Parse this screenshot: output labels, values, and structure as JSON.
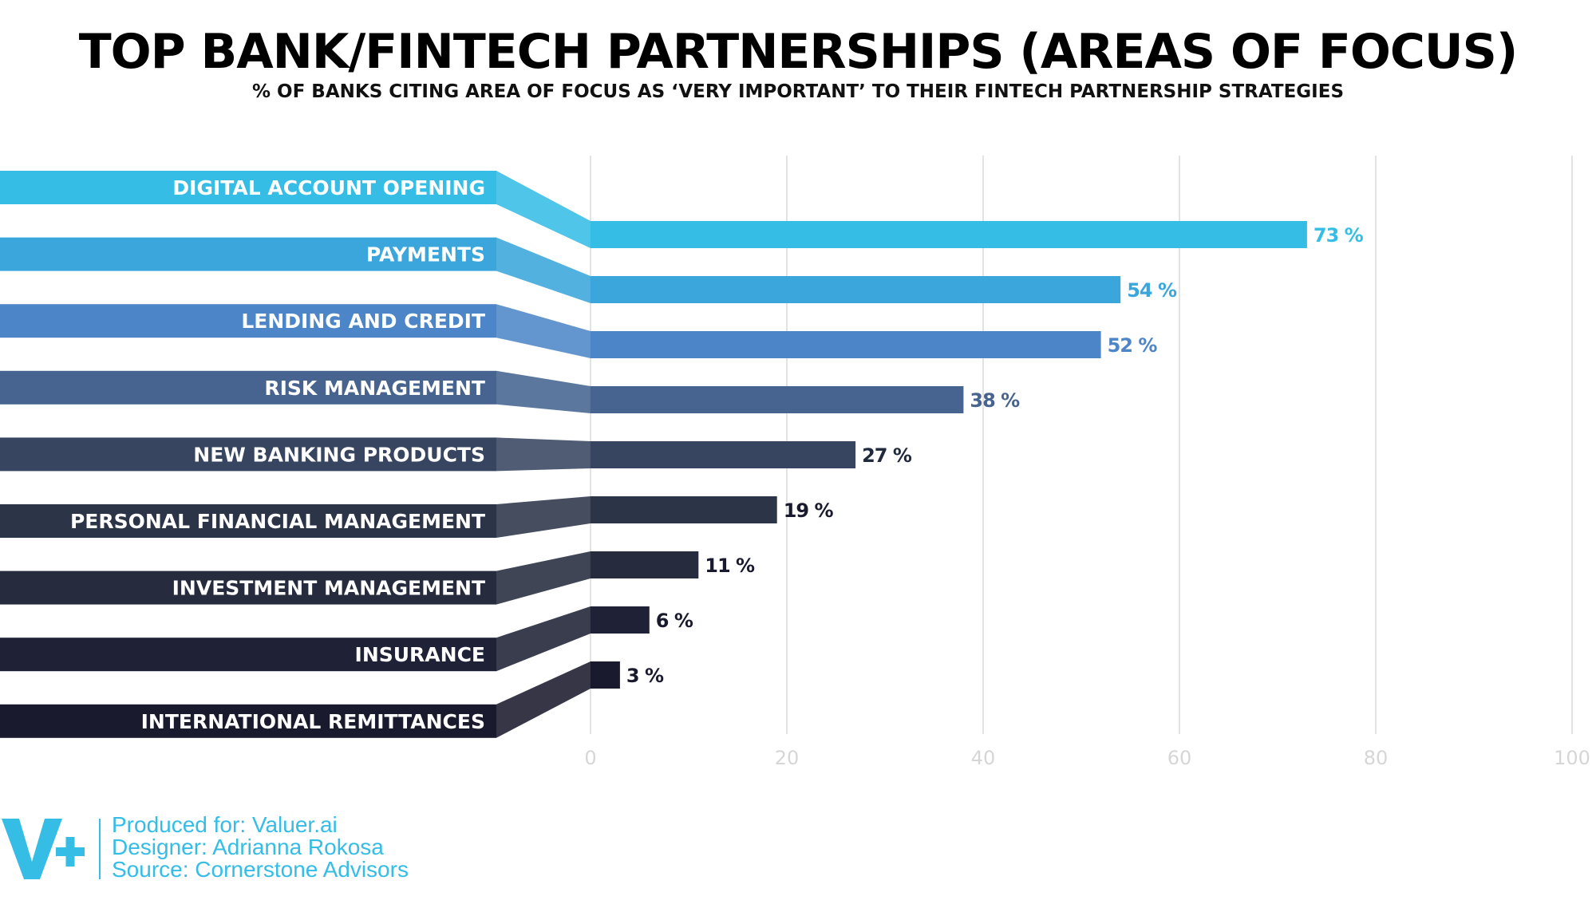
{
  "title": "TOP BANK/FINTECH PARTNERSHIPS (AREAS OF FOCUS)",
  "subtitle": "% OF BANKS CITING AREA OF FOCUS AS ‘VERY IMPORTANT’ TO THEIR FINTECH PARTNERSHIP STRATEGIES",
  "chart_data": {
    "type": "bar",
    "orientation": "horizontal",
    "categories": [
      "DIGITAL ACCOUNT OPENING",
      "PAYMENTS",
      "LENDING AND CREDIT",
      "RISK MANAGEMENT",
      "NEW BANKING PRODUCTS",
      "PERSONAL FINANCIAL MANAGEMENT",
      "INVESTMENT MANAGEMENT",
      "INSURANCE",
      "INTERNATIONAL REMITTANCES"
    ],
    "values": [
      73,
      54,
      52,
      38,
      27,
      19,
      11,
      6,
      3
    ],
    "value_labels": [
      "73 %",
      "54 %",
      "52 %",
      "38 %",
      "27 %",
      "19 %",
      "11 %",
      "6 %",
      "3 %"
    ],
    "xlim": [
      0,
      100
    ],
    "xticks": [
      "0",
      "20",
      "40",
      "60",
      "80",
      "100"
    ],
    "grid": true,
    "colors": [
      "#35bde6",
      "#3ba6dc",
      "#4d86c8",
      "#46648f",
      "#374560",
      "#2c3448",
      "#262b3e",
      "#1f2236",
      "#1a1a2e"
    ],
    "label_text_color": "#ffffff",
    "value_label_colors": [
      "#35bde6",
      "#3ba6dc",
      "#4d86c8",
      "#46648f",
      "#1f2a3d",
      "#1a1a2e",
      "#1a1a2e",
      "#1a1a2e",
      "#1a1a2e"
    ]
  },
  "footer": {
    "logo": "v-plus-logo",
    "lines": [
      "Produced for: Valuer.ai",
      "Designer: Adrianna Rokosa",
      "Source: Cornerstone Advisors"
    ],
    "color": "#35bde6"
  }
}
